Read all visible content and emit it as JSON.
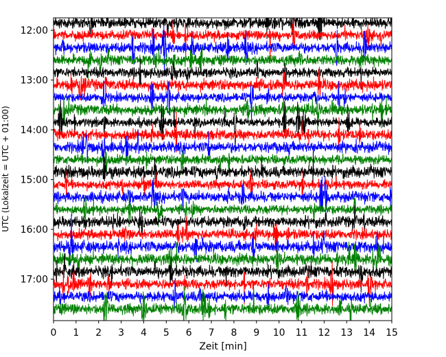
{
  "chart_data": {
    "type": "line",
    "title": "",
    "xlabel": "Zeit  [min]",
    "ylabel": "UTC (Lokalzeit = UTC + 01:00)",
    "xlim": [
      0,
      15
    ],
    "x_ticks": [
      "0",
      "1",
      "2",
      "3",
      "4",
      "5",
      "6",
      "7",
      "8",
      "9",
      "10",
      "11",
      "12",
      "13",
      "14",
      "15"
    ],
    "ylim_minutes_utc": [
      "11:45",
      "17:50"
    ],
    "y_ticks": [
      "12:00",
      "13:00",
      "14:00",
      "15:00",
      "16:00",
      "17:00"
    ],
    "trace_interval_minutes": 15,
    "trace_start": "11:51",
    "trace_count": 24,
    "color_cycle": [
      "#000000",
      "#ff0000",
      "#0000ff",
      "#008000"
    ],
    "grid": false,
    "legend": "none"
  }
}
